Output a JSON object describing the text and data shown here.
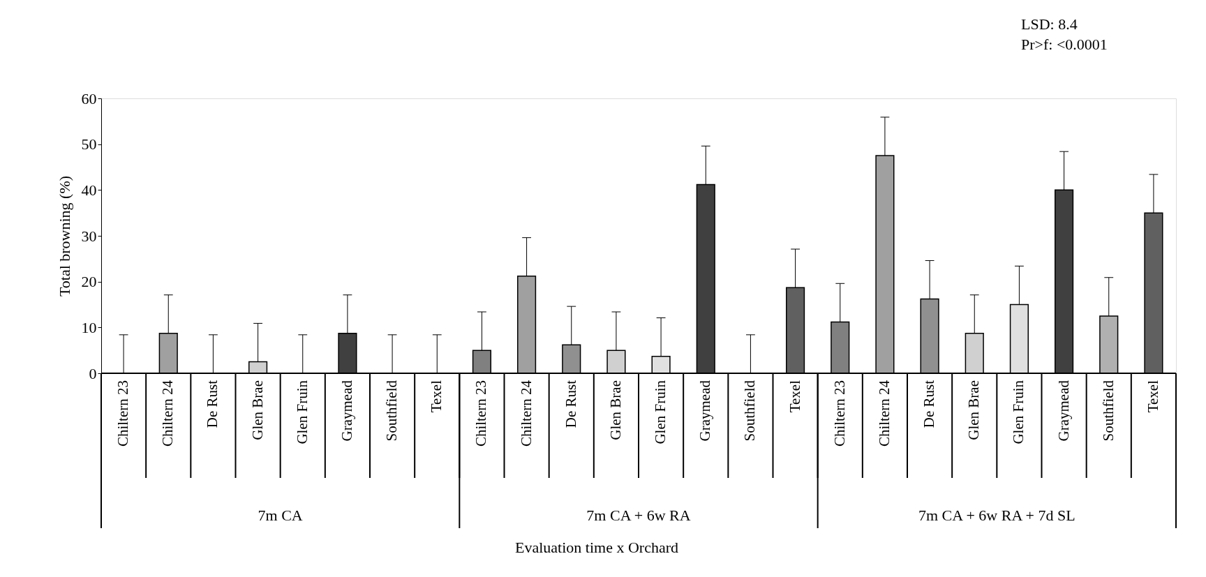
{
  "chart_data": {
    "type": "bar",
    "ylabel": "Total browning (%)",
    "categories": [
      "Chiltern 23",
      "Chiltern 24",
      "De Rust",
      "Glen Brae",
      "Glen Fruin",
      "Graymead",
      "Southfield",
      "Texel",
      "Chiltern 23",
      "Chiltern 24",
      "De Rust",
      "Glen Brae",
      "Glen Fruin",
      "Graymead",
      "Southfield",
      "Texel",
      "Chiltern 23",
      "Chiltern 24",
      "De Rust",
      "Glen Brae",
      "Glen Fruin",
      "Graymead",
      "Southfield",
      "Texel"
    ],
    "values": [
      0,
      8.7,
      0,
      2.5,
      0,
      8.7,
      0,
      0,
      5.0,
      21.2,
      6.2,
      5.0,
      3.7,
      41.2,
      0,
      18.7,
      11.2,
      47.5,
      16.2,
      8.7,
      15.0,
      40.0,
      12.5,
      35.0
    ],
    "errors": [
      [
        0,
        8.4
      ],
      [
        8.7,
        17.1
      ],
      [
        0,
        8.4
      ],
      [
        2.5,
        10.9
      ],
      [
        0,
        8.4
      ],
      [
        8.7,
        17.1
      ],
      [
        0,
        8.4
      ],
      [
        0,
        8.4
      ],
      [
        5.0,
        13.4
      ],
      [
        21.2,
        29.6
      ],
      [
        6.2,
        14.6
      ],
      [
        5.0,
        13.4
      ],
      [
        3.7,
        12.1
      ],
      [
        41.2,
        49.6
      ],
      [
        0,
        8.4
      ],
      [
        18.7,
        27.1
      ],
      [
        11.2,
        19.6
      ],
      [
        47.5,
        55.9
      ],
      [
        16.2,
        24.6
      ],
      [
        8.7,
        17.1
      ],
      [
        15.0,
        23.4
      ],
      [
        40.0,
        48.4
      ],
      [
        12.5,
        20.9
      ],
      [
        35.0,
        43.4
      ]
    ],
    "colors": [
      "#808080",
      "#a0a0a0",
      "#909090",
      "#d0d0d0",
      "#e0e0e0",
      "#404040",
      "#b0b0b0",
      "#606060",
      "#808080",
      "#a0a0a0",
      "#909090",
      "#d0d0d0",
      "#e0e0e0",
      "#404040",
      "#b0b0b0",
      "#606060",
      "#808080",
      "#a0a0a0",
      "#909090",
      "#d0d0d0",
      "#e0e0e0",
      "#404040",
      "#b0b0b0",
      "#606060"
    ],
    "ylim": [
      0,
      60
    ],
    "yticks": [
      0,
      10,
      20,
      30,
      40,
      50,
      60
    ],
    "grid": false,
    "annotations": [
      "LSD: 8.4",
      "Pr>f: <0.0001",
      "7m CA",
      "7m CA + 6w RA",
      "7m CA + 6w RA + 7d SL",
      "Evaluation time x Orchard"
    ]
  }
}
